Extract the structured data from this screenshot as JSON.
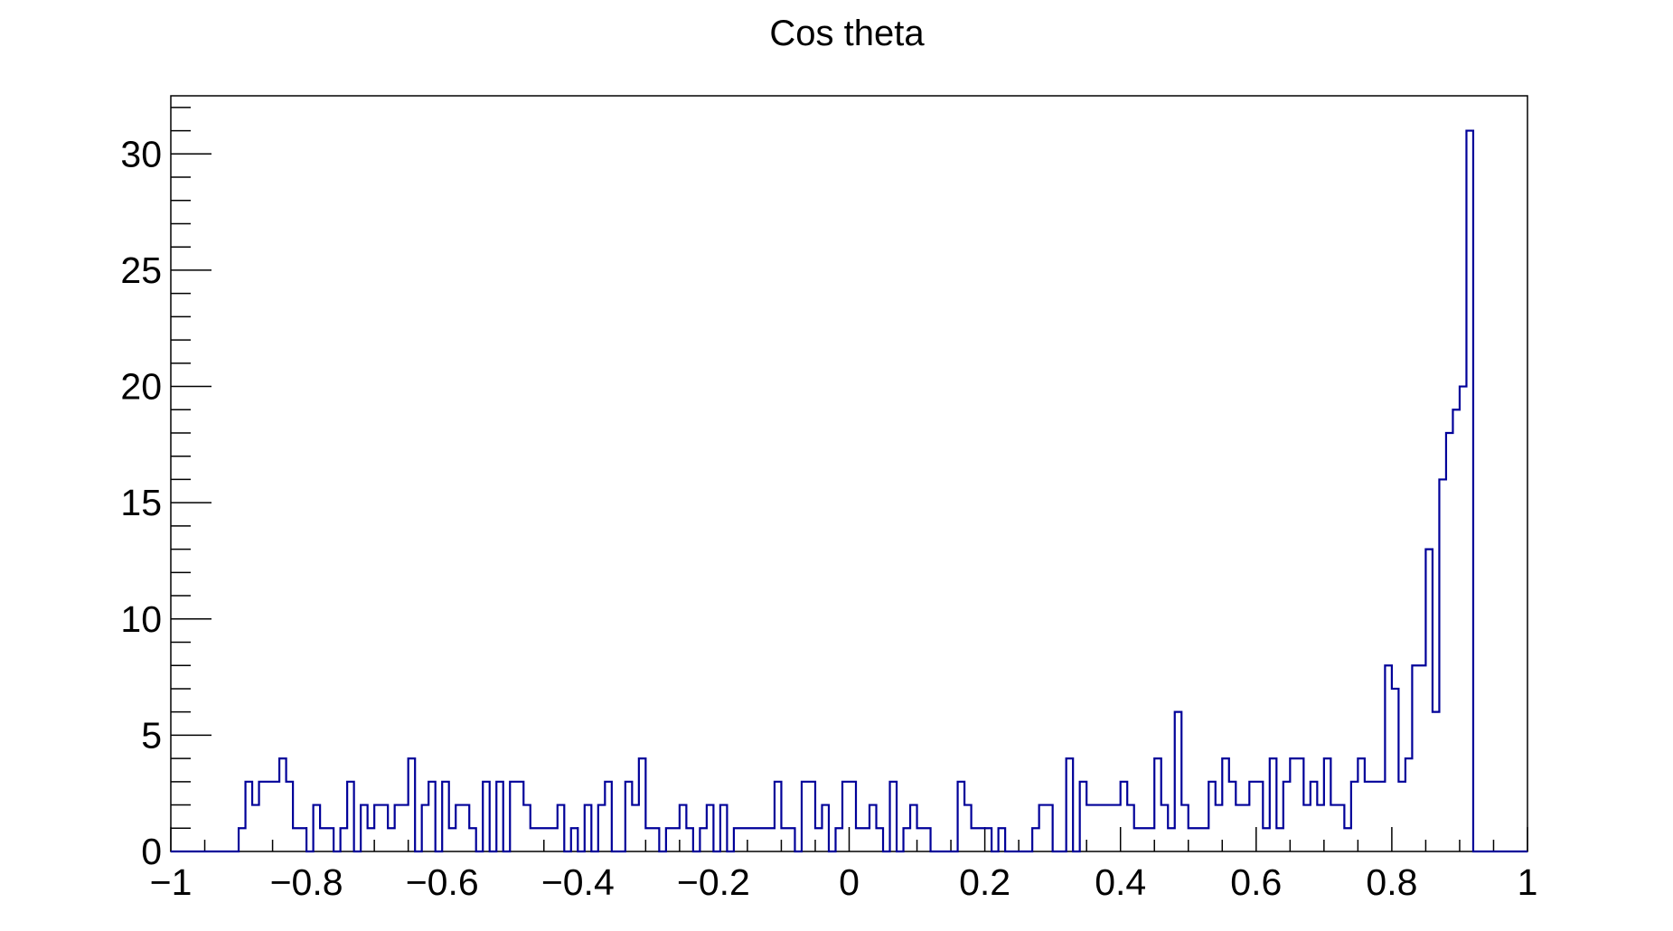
{
  "chart_data": {
    "type": "bar",
    "style": "step-histogram",
    "title": "Cos theta",
    "xlabel": "",
    "ylabel": "",
    "xlim": [
      -1,
      1
    ],
    "ylim": [
      0,
      32.5
    ],
    "bin_count": 200,
    "bin_width": 0.01,
    "x_ticks": [
      -1,
      -0.8,
      -0.6,
      -0.4,
      -0.2,
      0,
      0.2,
      0.4,
      0.6,
      0.8,
      1
    ],
    "x_tick_labels": [
      "−1",
      "−0.8",
      "−0.6",
      "−0.4",
      "−0.2",
      "0",
      "0.2",
      "0.4",
      "0.6",
      "0.8",
      "1"
    ],
    "y_ticks": [
      0,
      5,
      10,
      15,
      20,
      25,
      30
    ],
    "y_tick_labels": [
      "0",
      "5",
      "10",
      "15",
      "20",
      "25",
      "30"
    ],
    "grid": false,
    "line_color": "#000099",
    "series": [
      {
        "values": [
          0,
          0,
          0,
          0,
          0,
          0,
          0,
          0,
          0,
          0,
          1,
          3,
          2,
          3,
          3,
          3,
          4,
          3,
          1,
          1,
          0,
          2,
          1,
          1,
          0,
          1,
          3,
          0,
          2,
          1,
          2,
          2,
          1,
          2,
          2,
          4,
          0,
          2,
          3,
          0,
          3,
          1,
          2,
          2,
          1,
          0,
          3,
          0,
          3,
          0,
          3,
          3,
          2,
          1,
          1,
          1,
          1,
          2,
          0,
          1,
          0,
          2,
          0,
          2,
          3,
          0,
          0,
          3,
          2,
          4,
          1,
          1,
          0,
          1,
          1,
          2,
          1,
          0,
          1,
          2,
          0,
          2,
          0,
          1,
          1,
          1,
          1,
          1,
          1,
          3,
          1,
          1,
          0,
          3,
          3,
          1,
          2,
          0,
          1,
          3,
          3,
          1,
          1,
          2,
          1,
          0,
          3,
          0,
          1,
          2,
          1,
          1,
          0,
          0,
          0,
          0,
          3,
          2,
          1,
          1,
          1,
          0,
          1,
          0,
          0,
          0,
          0,
          1,
          2,
          2,
          0,
          0,
          4,
          0,
          3,
          2,
          2,
          2,
          2,
          2,
          3,
          2,
          1,
          1,
          1,
          4,
          2,
          1,
          6,
          2,
          1,
          1,
          1,
          3,
          2,
          4,
          3,
          2,
          2,
          3,
          3,
          1,
          4,
          1,
          3,
          4,
          4,
          2,
          3,
          2,
          4,
          2,
          2,
          1,
          3,
          4,
          3,
          3,
          3,
          8,
          7,
          3,
          4,
          8,
          8,
          13,
          6,
          16,
          18,
          19,
          20,
          31,
          0,
          0,
          0,
          0,
          0,
          0,
          0,
          0
        ]
      }
    ]
  }
}
